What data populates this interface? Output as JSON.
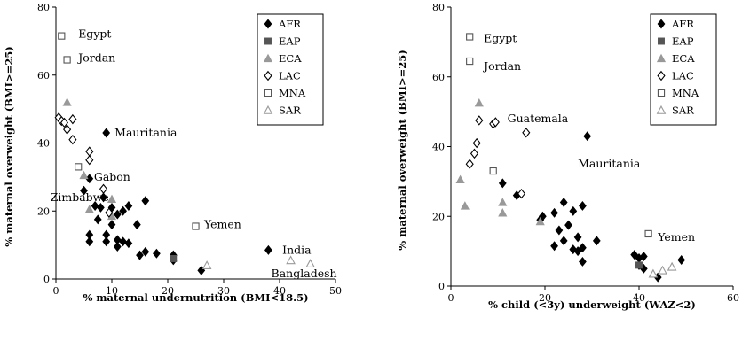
{
  "chart_data": [
    {
      "type": "scatter",
      "xlabel": "% maternal undernutrition (BMI<18.5)",
      "ylabel": "% maternal overweight (BMI>=25)",
      "xlim": [
        0,
        50
      ],
      "ylim": [
        0,
        80
      ],
      "xticks": [
        "0",
        "10",
        "20",
        "30",
        "40",
        "50"
      ],
      "yticks": [
        "0",
        "20",
        "40",
        "60",
        "80"
      ],
      "grid": false,
      "legend_position": "top-right",
      "series": [
        {
          "name": "AFR",
          "marker": "diamond-filled",
          "color": "#000000",
          "points": [
            [
              9,
              43
            ],
            [
              6,
              29.5
            ],
            [
              5,
              26
            ],
            [
              8.5,
              24
            ],
            [
              7,
              21.5
            ],
            [
              8,
              21
            ],
            [
              10,
              21
            ],
            [
              11,
              19
            ],
            [
              12,
              20
            ],
            [
              13,
              21.5
            ],
            [
              16,
              23
            ],
            [
              7.5,
              17.5
            ],
            [
              10,
              16
            ],
            [
              14.5,
              16
            ],
            [
              6,
              13
            ],
            [
              9,
              13
            ],
            [
              6,
              11
            ],
            [
              9,
              11
            ],
            [
              11,
              11.5
            ],
            [
              12,
              11
            ],
            [
              11,
              9.5
            ],
            [
              13,
              10.5
            ],
            [
              15,
              7
            ],
            [
              16,
              8
            ],
            [
              18,
              7.5
            ],
            [
              21,
              7
            ],
            [
              21,
              5.5
            ],
            [
              26,
              2.5
            ],
            [
              38,
              8.5
            ]
          ]
        },
        {
          "name": "EAP",
          "marker": "square-filled",
          "color": "#555555",
          "points": [
            [
              21,
              6
            ]
          ]
        },
        {
          "name": "ECA",
          "marker": "triangle-filled",
          "color": "#999999",
          "points": [
            [
              2,
              52
            ],
            [
              5,
              30.5
            ],
            [
              6,
              20.5
            ],
            [
              10,
              18.5
            ],
            [
              10,
              23.5
            ]
          ]
        },
        {
          "name": "LAC",
          "marker": "diamond-open",
          "color": "#000000",
          "points": [
            [
              0.5,
              47.5
            ],
            [
              1,
              46.5
            ],
            [
              3,
              47
            ],
            [
              2,
              44
            ],
            [
              3,
              41
            ],
            [
              1.5,
              46
            ],
            [
              6,
              37.5
            ],
            [
              6,
              35
            ],
            [
              8.5,
              26.5
            ],
            [
              9.5,
              19.5
            ]
          ]
        },
        {
          "name": "MNA",
          "marker": "square-open",
          "color": "#555555",
          "points": [
            [
              1,
              71.5
            ],
            [
              2,
              64.5
            ],
            [
              4,
              33
            ],
            [
              25,
              15.5
            ]
          ]
        },
        {
          "name": "SAR",
          "marker": "triangle-open",
          "color": "#999999",
          "points": [
            [
              27,
              4
            ],
            [
              42,
              5.5
            ],
            [
              45.5,
              4.5
            ]
          ]
        }
      ],
      "annotations": [
        {
          "text": "Egypt",
          "x": 4,
          "y": 72
        },
        {
          "text": "Jordan",
          "x": 4,
          "y": 65
        },
        {
          "text": "Mauritania",
          "x": 10.5,
          "y": 43
        },
        {
          "text": "Gabon",
          "x": 6.8,
          "y": 30
        },
        {
          "text": "Zimbabwe",
          "x": -1,
          "y": 24
        },
        {
          "text": "Yemen",
          "x": 26.5,
          "y": 16
        },
        {
          "text": "India",
          "x": 40.5,
          "y": 8.5
        },
        {
          "text": "Bangladesh",
          "x": 38.5,
          "y": 1.5
        }
      ]
    },
    {
      "type": "scatter",
      "xlabel": "% child (<3y) underweight (WAZ<2)",
      "ylabel": "% maternal overweight (BMI>=25)",
      "xlim": [
        0,
        60
      ],
      "ylim": [
        0,
        80
      ],
      "xticks": [
        "0",
        "20",
        "40",
        "60"
      ],
      "yticks": [
        "0",
        "20",
        "40",
        "60",
        "80"
      ],
      "grid": false,
      "legend_position": "top-right",
      "series": [
        {
          "name": "AFR",
          "marker": "diamond-filled",
          "color": "#000000",
          "points": [
            [
              29,
              43
            ],
            [
              11,
              29.5
            ],
            [
              14,
              26
            ],
            [
              24,
              24
            ],
            [
              26,
              21.5
            ],
            [
              28,
              23
            ],
            [
              19,
              19
            ],
            [
              22,
              21
            ],
            [
              19.5,
              20
            ],
            [
              25,
              17.5
            ],
            [
              23,
              16
            ],
            [
              27,
              14
            ],
            [
              31,
              13
            ],
            [
              22,
              11.5
            ],
            [
              26,
              10.5
            ],
            [
              28,
              11
            ],
            [
              24,
              13
            ],
            [
              27,
              10
            ],
            [
              28,
              7
            ],
            [
              39,
              9
            ],
            [
              40,
              8
            ],
            [
              40,
              6
            ],
            [
              41,
              5
            ],
            [
              44,
              2.5
            ],
            [
              49,
              7.5
            ],
            [
              41,
              8.5
            ]
          ]
        },
        {
          "name": "EAP",
          "marker": "square-filled",
          "color": "#555555",
          "points": [
            [
              40,
              6
            ]
          ]
        },
        {
          "name": "ECA",
          "marker": "triangle-filled",
          "color": "#999999",
          "points": [
            [
              6,
              52.5
            ],
            [
              2,
              30.5
            ],
            [
              3,
              23
            ],
            [
              11,
              21
            ],
            [
              11,
              24
            ],
            [
              19,
              18.5
            ]
          ]
        },
        {
          "name": "LAC",
          "marker": "diamond-open",
          "color": "#000000",
          "points": [
            [
              6,
              47.5
            ],
            [
              9,
              46.5
            ],
            [
              9.5,
              47
            ],
            [
              16,
              44
            ],
            [
              5.5,
              41
            ],
            [
              5,
              38
            ],
            [
              4,
              35
            ],
            [
              15,
              26.5
            ]
          ]
        },
        {
          "name": "MNA",
          "marker": "square-open",
          "color": "#555555",
          "points": [
            [
              4,
              71.5
            ],
            [
              4,
              64.5
            ],
            [
              9,
              33
            ],
            [
              42,
              15
            ]
          ]
        },
        {
          "name": "SAR",
          "marker": "triangle-open",
          "color": "#999999",
          "points": [
            [
              43,
              3.5
            ],
            [
              45,
              4.5
            ],
            [
              47,
              5.5
            ]
          ]
        }
      ],
      "annotations": [
        {
          "text": "Egypt",
          "x": 7,
          "y": 71
        },
        {
          "text": "Jordan",
          "x": 7,
          "y": 63
        },
        {
          "text": "Guatemala",
          "x": 12,
          "y": 48
        },
        {
          "text": "Mauritania",
          "x": 27,
          "y": 35
        },
        {
          "text": "Yemen",
          "x": 44,
          "y": 14
        }
      ]
    }
  ]
}
